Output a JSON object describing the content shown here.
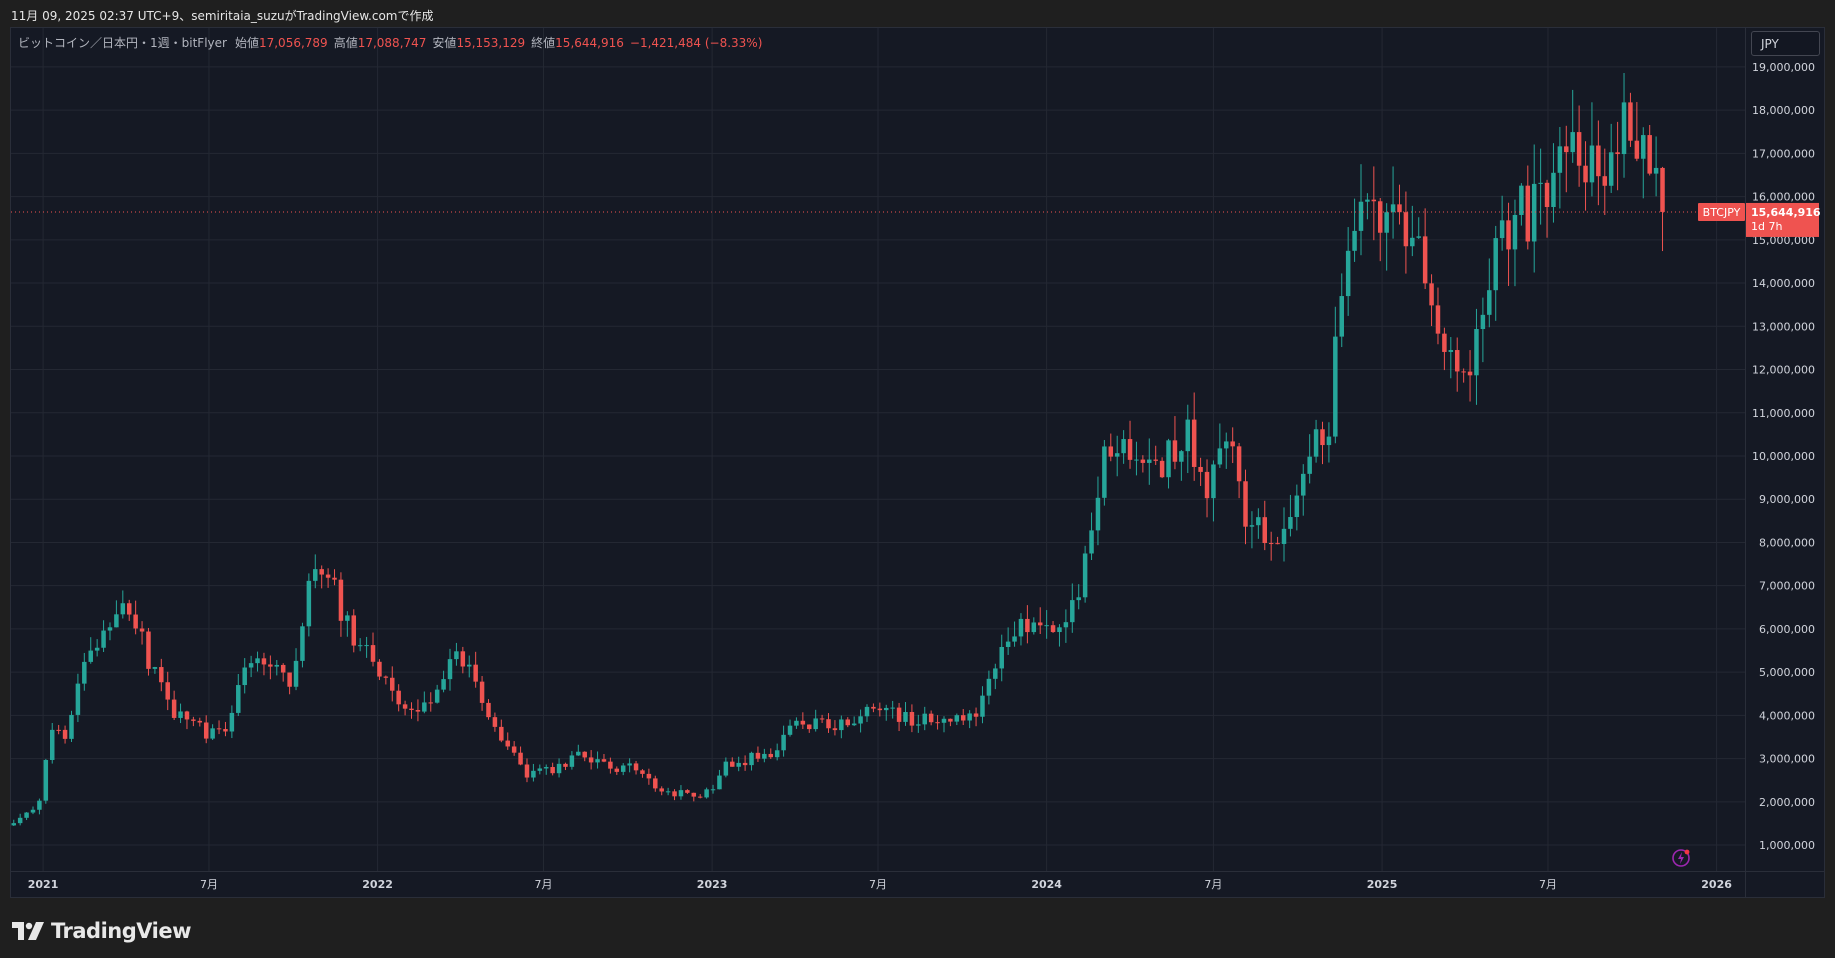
{
  "header": {
    "credit": "11月 09, 2025 02:37 UTC+9、semiritaia_suzuがTradingView.comで作成"
  },
  "legend": {
    "symbol": "ビットコイン／日本円・1週・bitFlyer",
    "open_label": "始値",
    "open_value": "17,056,789",
    "high_label": "高値",
    "high_value": "17,088,747",
    "low_label": "安値",
    "low_value": "15,153,129",
    "close_label": "終値",
    "close_value": "15,644,916",
    "change": "−1,421,484 (−8.33%)"
  },
  "currency_button": "JPY",
  "price_tag": {
    "symbol": "BTCJPY",
    "price": "15,644,916",
    "countdown": "1d 7h"
  },
  "footer": {
    "brand": "TradingView"
  },
  "colors": {
    "up": "#26a69a",
    "down": "#ef5350",
    "background": "#151924",
    "grid": "#242833",
    "text": "#d1d4dc"
  },
  "chart_data": {
    "type": "candlestick",
    "symbol": "BTCJPY",
    "interval": "1W",
    "exchange": "bitFlyer",
    "y_axis": {
      "position": "right",
      "ticks": [
        1000000,
        2000000,
        3000000,
        4000000,
        5000000,
        6000000,
        7000000,
        8000000,
        9000000,
        10000000,
        11000000,
        12000000,
        13000000,
        14000000,
        15000000,
        16000000,
        17000000,
        18000000,
        19000000
      ],
      "tick_labels": [
        "1,000,000",
        "2,000,000",
        "3,000,000",
        "4,000,000",
        "5,000,000",
        "6,000,000",
        "7,000,000",
        "8,000,000",
        "9,000,000",
        "10,000,000",
        "11,000,000",
        "12,000,000",
        "13,000,000",
        "14,000,000",
        "15,000,000",
        "16,000,000",
        "17,000,000",
        "18,000,000",
        "19,000,000"
      ],
      "range": [
        400000,
        19900000
      ]
    },
    "x_axis": {
      "labels": [
        {
          "date": "2021-01-01",
          "text": "2021"
        },
        {
          "date": "2021-07-01",
          "text": "7月"
        },
        {
          "date": "2022-01-01",
          "text": "2022"
        },
        {
          "date": "2022-07-01",
          "text": "7月"
        },
        {
          "date": "2023-01-01",
          "text": "2023"
        },
        {
          "date": "2023-07-01",
          "text": "7月"
        },
        {
          "date": "2024-01-01",
          "text": "2024"
        },
        {
          "date": "2024-07-01",
          "text": "7月"
        },
        {
          "date": "2025-01-01",
          "text": "2025"
        },
        {
          "date": "2025-07-01",
          "text": "7月"
        },
        {
          "date": "2026-01-01",
          "text": "2026"
        }
      ],
      "range": [
        "2020-11-27",
        "2026-02-01"
      ]
    },
    "first_week": "2020-11-30",
    "last_close": 15644916,
    "anchors": [
      [
        "2020-11-30",
        1500000
      ],
      [
        "2020-12-28",
        2000000
      ],
      [
        "2021-01-11",
        3700000
      ],
      [
        "2021-01-25",
        3300000
      ],
      [
        "2021-02-15",
        5300000
      ],
      [
        "2021-03-08",
        6000000
      ],
      [
        "2021-03-29",
        6300000
      ],
      [
        "2021-04-19",
        5700000
      ],
      [
        "2021-05-17",
        4200000
      ],
      [
        "2021-06-14",
        3700000
      ],
      [
        "2021-07-19",
        3500000
      ],
      [
        "2021-08-09",
        5000000
      ],
      [
        "2021-09-06",
        5200000
      ],
      [
        "2021-09-27",
        4700000
      ],
      [
        "2021-10-18",
        6900000
      ],
      [
        "2021-11-08",
        7300000
      ],
      [
        "2021-12-06",
        5700000
      ],
      [
        "2021-12-27",
        5300000
      ],
      [
        "2022-01-17",
        4500000
      ],
      [
        "2022-02-07",
        4100000
      ],
      [
        "2022-03-07",
        4400000
      ],
      [
        "2022-03-28",
        5400000
      ],
      [
        "2022-04-18",
        4900000
      ],
      [
        "2022-05-09",
        3700000
      ],
      [
        "2022-06-13",
        2600000
      ],
      [
        "2022-07-11",
        2700000
      ],
      [
        "2022-08-15",
        3100000
      ],
      [
        "2022-09-12",
        2700000
      ],
      [
        "2022-10-10",
        2800000
      ],
      [
        "2022-11-07",
        2200000
      ],
      [
        "2022-12-26",
        2200000
      ],
      [
        "2023-01-16",
        2800000
      ],
      [
        "2023-03-13",
        3200000
      ],
      [
        "2023-03-27",
        3800000
      ],
      [
        "2023-05-15",
        3700000
      ],
      [
        "2023-06-26",
        4100000
      ],
      [
        "2023-08-14",
        3900000
      ],
      [
        "2023-09-11",
        3800000
      ],
      [
        "2023-10-16",
        4100000
      ],
      [
        "2023-11-06",
        5300000
      ],
      [
        "2023-12-04",
        6000000
      ],
      [
        "2024-01-08",
        6200000
      ],
      [
        "2024-01-22",
        5900000
      ],
      [
        "2024-02-12",
        7600000
      ],
      [
        "2024-03-04",
        9800000
      ],
      [
        "2024-03-18",
        10000000
      ],
      [
        "2024-04-15",
        9700000
      ],
      [
        "2024-05-06",
        9800000
      ],
      [
        "2024-06-03",
        10600000
      ],
      [
        "2024-06-24",
        9500000
      ],
      [
        "2024-07-22",
        10300000
      ],
      [
        "2024-08-05",
        8600000
      ],
      [
        "2024-09-09",
        8000000
      ],
      [
        "2024-10-07",
        9600000
      ],
      [
        "2024-11-04",
        10900000
      ],
      [
        "2024-11-25",
        15000000
      ],
      [
        "2024-12-16",
        15200000
      ],
      [
        "2025-01-20",
        15500000
      ],
      [
        "2025-02-24",
        13700000
      ],
      [
        "2025-03-10",
        12100000
      ],
      [
        "2025-04-07",
        11500000
      ],
      [
        "2025-05-05",
        14900000
      ],
      [
        "2025-06-02",
        15700000
      ],
      [
        "2025-06-30",
        15500000
      ],
      [
        "2025-07-14",
        17500000
      ],
      [
        "2025-08-04",
        17000000
      ],
      [
        "2025-09-01",
        16500000
      ],
      [
        "2025-09-29",
        17900000
      ],
      [
        "2025-10-13",
        17500000
      ],
      [
        "2025-11-03",
        15644916
      ]
    ]
  }
}
